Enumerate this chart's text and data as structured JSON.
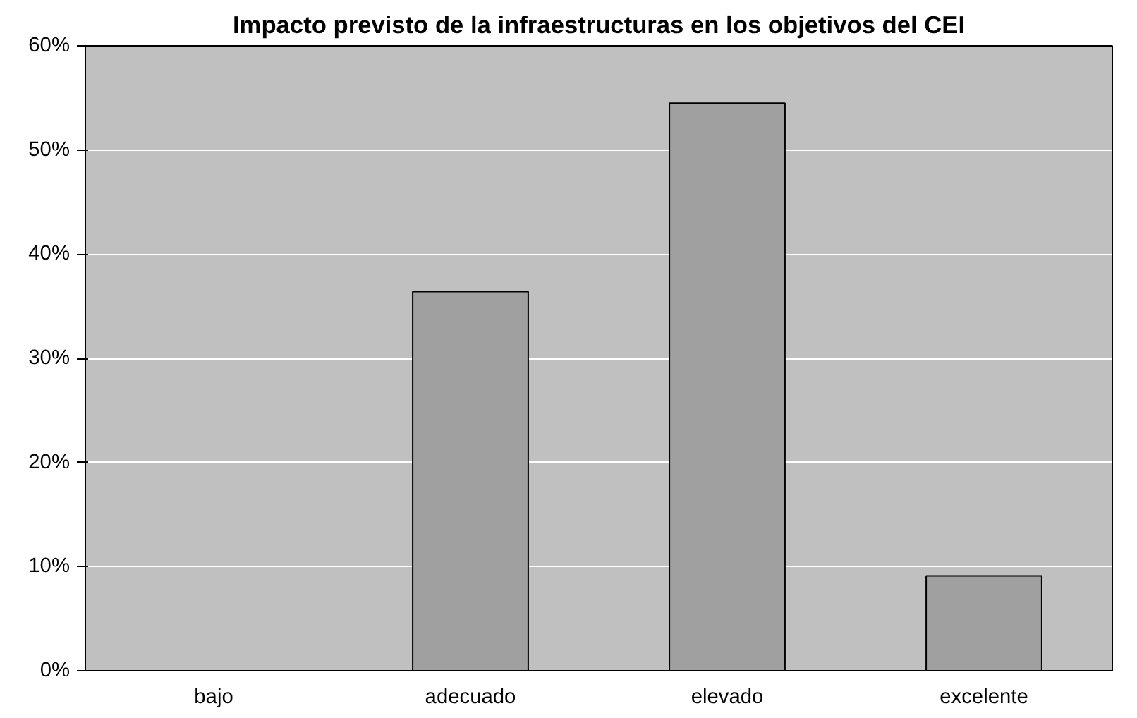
{
  "chart_data": {
    "type": "bar",
    "title": "Impacto previsto de la infraestructuras en los objetivos del CEI",
    "categories": [
      "bajo",
      "adecuado",
      "elevado",
      "excelente"
    ],
    "values": [
      0,
      36.4,
      54.5,
      9.1
    ],
    "color": "#a0a0a0",
    "ylim": [
      0,
      60
    ],
    "yticks": [
      {
        "value": 0,
        "label": "0%"
      },
      {
        "value": 10,
        "label": "10%"
      },
      {
        "value": 20,
        "label": "20%"
      },
      {
        "value": 30,
        "label": "30%"
      },
      {
        "value": 40,
        "label": "40%"
      },
      {
        "value": 50,
        "label": "50%"
      },
      {
        "value": 60,
        "label": "60%"
      }
    ],
    "grid": "y"
  }
}
